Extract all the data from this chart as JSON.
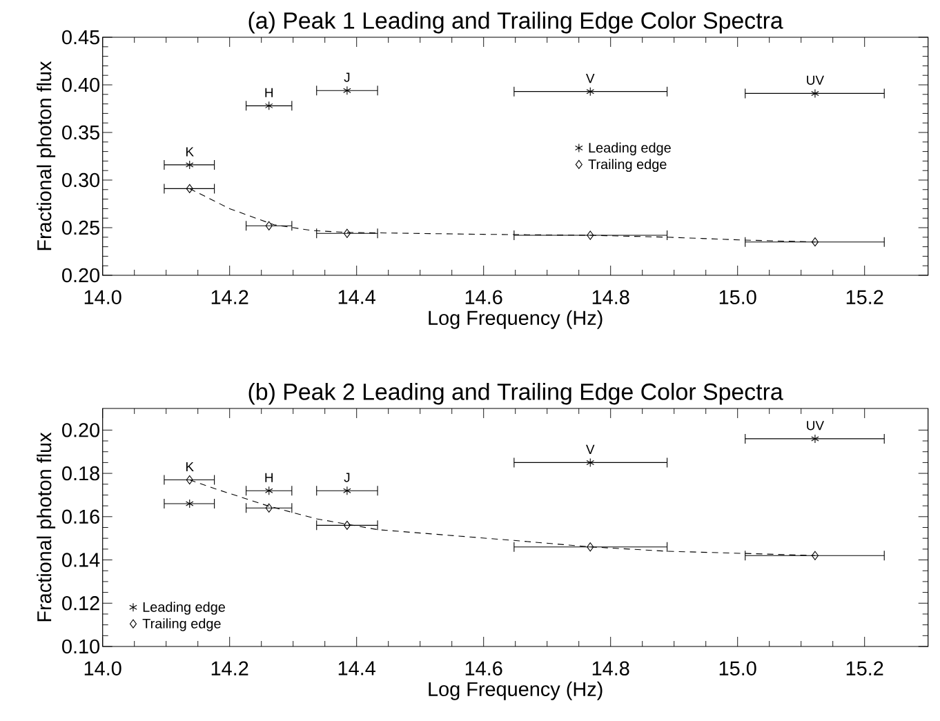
{
  "chart_data": [
    {
      "type": "scatter",
      "title": "(a) Peak 1 Leading and Trailing Edge Color Spectra",
      "xlabel": "Log Frequency (Hz)",
      "ylabel": "Fractional photon flux",
      "xlim": [
        14.0,
        15.3
      ],
      "ylim": [
        0.2,
        0.45
      ],
      "xticks": [
        {
          "value": 14.0,
          "label": "14.0"
        },
        {
          "value": 14.2,
          "label": "14.2"
        },
        {
          "value": 14.4,
          "label": "14.4"
        },
        {
          "value": 14.6,
          "label": "14.6"
        },
        {
          "value": 14.8,
          "label": "14.8"
        },
        {
          "value": 15.0,
          "label": "15.0"
        },
        {
          "value": 15.2,
          "label": "15.2"
        }
      ],
      "yticks": [
        {
          "value": 0.2,
          "label": "0.20"
        },
        {
          "value": 0.25,
          "label": "0.25"
        },
        {
          "value": 0.3,
          "label": "0.30"
        },
        {
          "value": 0.35,
          "label": "0.35"
        },
        {
          "value": 0.4,
          "label": "0.40"
        },
        {
          "value": 0.45,
          "label": "0.45"
        }
      ],
      "legend": "center",
      "annotations": [
        {
          "text": "K",
          "x": 14.137,
          "y": 0.316
        },
        {
          "text": "H",
          "x": 14.262,
          "y": 0.378
        },
        {
          "text": "J",
          "x": 14.385,
          "y": 0.394
        },
        {
          "text": "V",
          "x": 14.768,
          "y": 0.393
        },
        {
          "text": "UV",
          "x": 15.122,
          "y": 0.391
        }
      ],
      "series": [
        {
          "name": "Leading edge",
          "marker": "cross",
          "color": "#000000",
          "x": [
            14.137,
            14.262,
            14.385,
            14.768,
            15.122
          ],
          "values": [
            0.316,
            0.378,
            0.394,
            0.393,
            0.391
          ],
          "xerrors": [
            [
              14.097,
              14.176
            ],
            [
              14.226,
              14.298
            ],
            [
              14.337,
              14.433
            ],
            [
              14.648,
              14.889
            ],
            [
              15.012,
              15.231
            ]
          ]
        },
        {
          "name": "Trailing edge",
          "marker": "diamond",
          "color": "#000000",
          "x": [
            14.137,
            14.262,
            14.385,
            14.768,
            15.122
          ],
          "values": [
            0.291,
            0.252,
            0.244,
            0.242,
            0.235
          ],
          "xerrors": [
            [
              14.097,
              14.176
            ],
            [
              14.226,
              14.298
            ],
            [
              14.337,
              14.433
            ],
            [
              14.648,
              14.889
            ],
            [
              15.012,
              15.231
            ]
          ]
        },
        {
          "type": "line",
          "marker": "none",
          "line_style": "dashed",
          "color": "#000000",
          "x": [
            14.137,
            14.2,
            14.27,
            14.33,
            14.385,
            14.6,
            14.77,
            14.89,
            15.01,
            15.122
          ],
          "values": [
            0.291,
            0.27,
            0.253,
            0.247,
            0.245,
            0.243,
            0.242,
            0.24,
            0.237,
            0.235
          ]
        }
      ]
    },
    {
      "type": "scatter",
      "title": "(b) Peak 2 Leading and Trailing Edge Color Spectra",
      "xlabel": "Log Frequency (Hz)",
      "ylabel": "Fractional photon flux",
      "xlim": [
        14.0,
        15.3
      ],
      "ylim": [
        0.1,
        0.21
      ],
      "xticks": [
        {
          "value": 14.0,
          "label": "14.0"
        },
        {
          "value": 14.2,
          "label": "14.2"
        },
        {
          "value": 14.4,
          "label": "14.4"
        },
        {
          "value": 14.6,
          "label": "14.6"
        },
        {
          "value": 14.8,
          "label": "14.8"
        },
        {
          "value": 15.0,
          "label": "15.0"
        },
        {
          "value": 15.2,
          "label": "15.2"
        }
      ],
      "yticks": [
        {
          "value": 0.1,
          "label": "0.10"
        },
        {
          "value": 0.12,
          "label": "0.12"
        },
        {
          "value": 0.14,
          "label": "0.14"
        },
        {
          "value": 0.16,
          "label": "0.16"
        },
        {
          "value": 0.18,
          "label": "0.18"
        },
        {
          "value": 0.2,
          "label": "0.20"
        }
      ],
      "legend": "bottom left",
      "annotations": [
        {
          "text": "K",
          "x": 14.137,
          "y": 0.177
        },
        {
          "text": "H",
          "x": 14.262,
          "y": 0.172
        },
        {
          "text": "J",
          "x": 14.385,
          "y": 0.172
        },
        {
          "text": "V",
          "x": 14.768,
          "y": 0.185
        },
        {
          "text": "UV",
          "x": 15.122,
          "y": 0.196
        }
      ],
      "series": [
        {
          "name": "Leading edge",
          "marker": "cross",
          "color": "#000000",
          "x": [
            14.137,
            14.262,
            14.385,
            14.768,
            15.122
          ],
          "values": [
            0.166,
            0.172,
            0.172,
            0.185,
            0.196
          ],
          "xerrors": [
            [
              14.097,
              14.176
            ],
            [
              14.226,
              14.298
            ],
            [
              14.337,
              14.433
            ],
            [
              14.648,
              14.889
            ],
            [
              15.012,
              15.231
            ]
          ]
        },
        {
          "name": "Trailing edge",
          "marker": "diamond",
          "color": "#000000",
          "x": [
            14.137,
            14.262,
            14.385,
            14.768,
            15.122
          ],
          "values": [
            0.177,
            0.164,
            0.156,
            0.146,
            0.142
          ],
          "xerrors": [
            [
              14.097,
              14.176
            ],
            [
              14.226,
              14.298
            ],
            [
              14.337,
              14.433
            ],
            [
              14.648,
              14.889
            ],
            [
              15.012,
              15.231
            ]
          ]
        },
        {
          "type": "line",
          "marker": "none",
          "line_style": "dashed",
          "color": "#000000",
          "x": [
            14.137,
            14.176,
            14.26,
            14.298,
            14.337,
            14.433,
            14.648,
            14.77,
            14.889,
            15.012,
            15.122
          ],
          "values": [
            0.177,
            0.173,
            0.165,
            0.162,
            0.159,
            0.154,
            0.149,
            0.146,
            0.144,
            0.143,
            0.142
          ]
        }
      ]
    }
  ]
}
